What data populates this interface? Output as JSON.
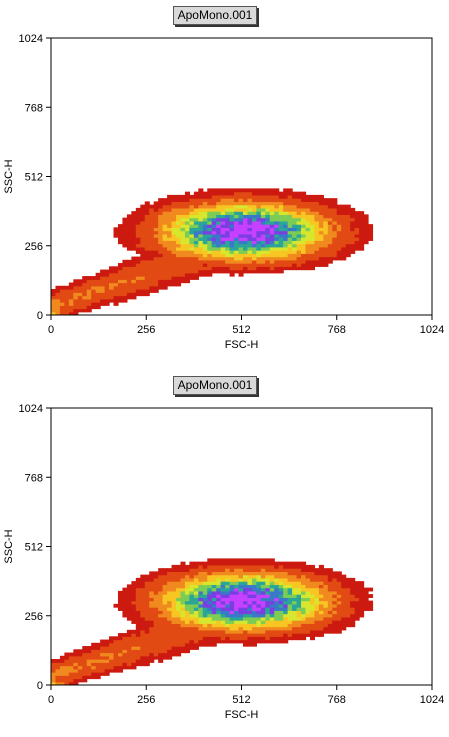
{
  "chart_data": [
    {
      "type": "heatmap",
      "title": "ApoMono.001",
      "xlabel": "FSC-H",
      "ylabel": "SSC-H",
      "xlim": [
        0,
        1024
      ],
      "ylim": [
        0,
        1024
      ],
      "xticks": [
        "0",
        "256",
        "512",
        "768",
        "1024"
      ],
      "yticks": [
        "0",
        "256",
        "512",
        "768",
        "1024"
      ],
      "density_peak": {
        "x": 520,
        "y": 310
      },
      "colors": [
        "#cc1a10",
        "#e24a14",
        "#f08a1e",
        "#f7c623",
        "#d8e62e",
        "#7ccc55",
        "#2aa698",
        "#3a78c8",
        "#7a3fe0",
        "#c640ff"
      ]
    },
    {
      "type": "heatmap",
      "title": "ApoMono.001",
      "xlabel": "FSC-H",
      "ylabel": "SSC-H",
      "xlim": [
        0,
        1024
      ],
      "ylim": [
        0,
        1024
      ],
      "xticks": [
        "0",
        "256",
        "512",
        "768",
        "1024"
      ],
      "yticks": [
        "0",
        "256",
        "512",
        "768",
        "1024"
      ],
      "density_peak": {
        "x": 520,
        "y": 310
      },
      "colors": [
        "#cc1a10",
        "#e24a14",
        "#f08a1e",
        "#f7c623",
        "#d8e62e",
        "#7ccc55",
        "#2aa698",
        "#3a78c8",
        "#7a3fe0",
        "#c640ff"
      ]
    }
  ]
}
